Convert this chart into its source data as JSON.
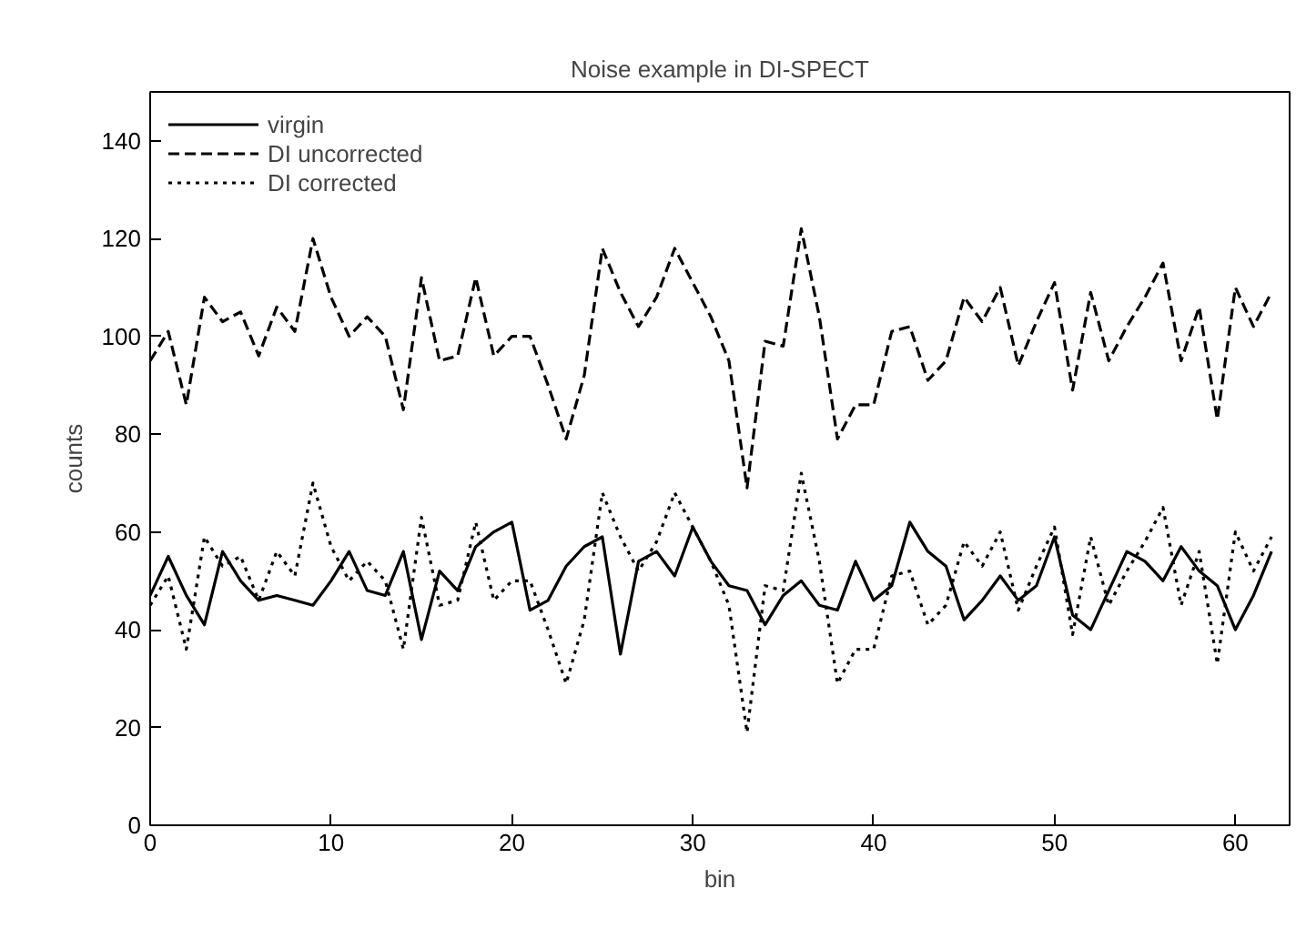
{
  "chart_data": {
    "type": "line",
    "title": "Noise example in DI-SPECT",
    "xlabel": "bin",
    "ylabel": "counts",
    "x": [
      0,
      1,
      2,
      3,
      4,
      5,
      6,
      7,
      8,
      9,
      10,
      11,
      12,
      13,
      14,
      15,
      16,
      17,
      18,
      19,
      20,
      21,
      22,
      23,
      24,
      25,
      26,
      27,
      28,
      29,
      30,
      31,
      32,
      33,
      34,
      35,
      36,
      37,
      38,
      39,
      40,
      41,
      42,
      43,
      44,
      45,
      46,
      47,
      48,
      49,
      50,
      51,
      52,
      53,
      54,
      55,
      56,
      57,
      58,
      59,
      60,
      61,
      62
    ],
    "xlim": [
      0,
      63
    ],
    "xticks": [
      0,
      10,
      20,
      30,
      40,
      50,
      60
    ],
    "ylim": [
      0,
      150
    ],
    "yticks": [
      0,
      20,
      40,
      60,
      80,
      100,
      120,
      140
    ],
    "grid": false,
    "legend": "top left",
    "marker": "none",
    "series": [
      {
        "name": "virgin",
        "color": "#000000",
        "line_style": "solid",
        "values": [
          47,
          55,
          47,
          41,
          56,
          50,
          46,
          47,
          46,
          45,
          50,
          56,
          48,
          47,
          56,
          38,
          52,
          48,
          57,
          60,
          62,
          44,
          46,
          53,
          57,
          59,
          35,
          54,
          56,
          51,
          61,
          54,
          49,
          48,
          41,
          47,
          50,
          45,
          44,
          54,
          46,
          49,
          62,
          56,
          53,
          42,
          46,
          51,
          46,
          49,
          59,
          43,
          40,
          48,
          56,
          54,
          50,
          57,
          52,
          49,
          40,
          47,
          56
        ]
      },
      {
        "name": "DI uncorrected",
        "color": "#000000",
        "line_style": "dashed",
        "values": [
          95,
          101,
          86,
          108,
          103,
          105,
          96,
          106,
          101,
          120,
          108,
          100,
          104,
          100,
          85,
          112,
          95,
          96,
          112,
          96,
          100,
          100,
          90,
          79,
          92,
          118,
          109,
          102,
          108,
          118,
          111,
          104,
          95,
          69,
          99,
          98,
          122,
          104,
          79,
          86,
          86,
          101,
          102,
          91,
          95,
          108,
          103,
          110,
          94,
          103,
          111,
          89,
          109,
          95,
          102,
          108,
          115,
          95,
          106,
          83,
          110,
          102,
          109
        ]
      },
      {
        "name": "DI corrected",
        "color": "#000000",
        "line_style": "dotted",
        "values": [
          45,
          51,
          36,
          59,
          53,
          55,
          46,
          56,
          51,
          70,
          57,
          50,
          54,
          50,
          36,
          63,
          45,
          46,
          62,
          46,
          50,
          50,
          40,
          29,
          42,
          68,
          59,
          52,
          58,
          68,
          61,
          54,
          45,
          19,
          49,
          48,
          72,
          54,
          29,
          36,
          36,
          51,
          52,
          41,
          45,
          58,
          53,
          60,
          44,
          53,
          61,
          39,
          59,
          45,
          52,
          58,
          65,
          45,
          56,
          33,
          60,
          52,
          59
        ]
      }
    ]
  }
}
